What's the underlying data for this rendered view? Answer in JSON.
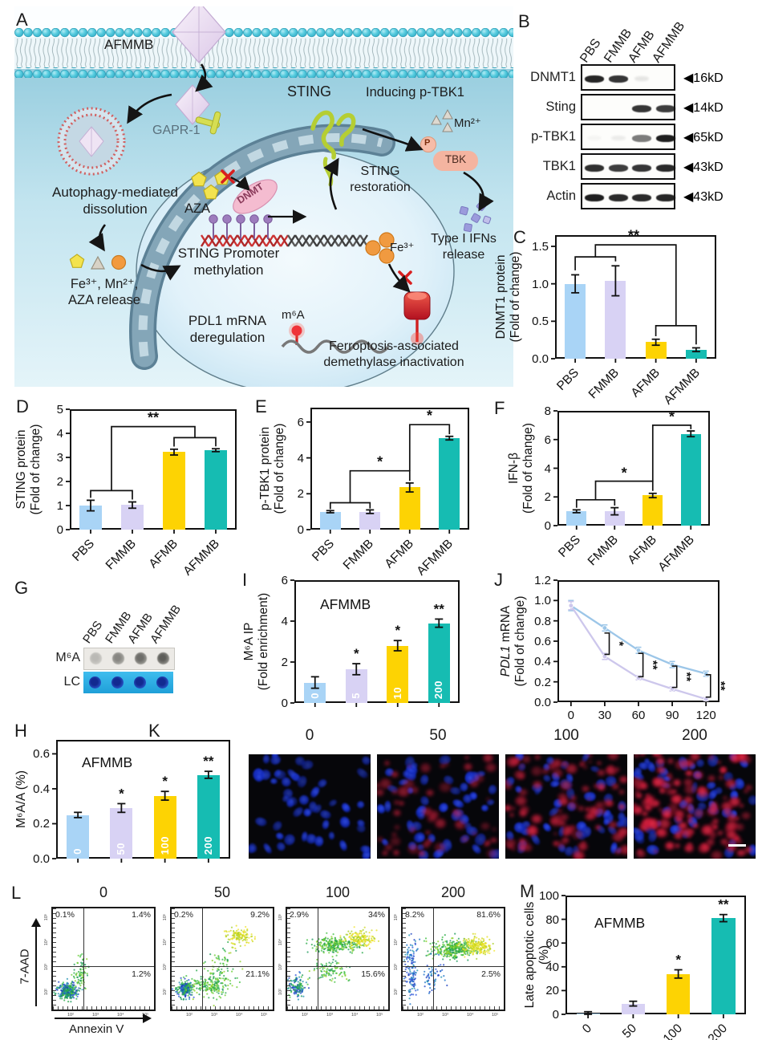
{
  "panel_letters": {
    "A": "A",
    "B": "B",
    "C": "C",
    "D": "D",
    "E": "E",
    "F": "F",
    "G": "G",
    "H": "H",
    "I": "I",
    "J": "J",
    "K": "K",
    "L": "L",
    "M": "M"
  },
  "colors": {
    "bar_blue": "#a9d4f6",
    "bar_lavender": "#d8d2f4",
    "bar_yellow": "#fdd303",
    "bar_teal": "#16bcb2",
    "line_blue": "#9cc6e8",
    "line_lavender": "#cdc7ec",
    "lc_blue": "#2fb3e8"
  },
  "panelA": {
    "labels": {
      "afmmb": "AFMMB",
      "gapr1": "GAPR-1",
      "sting": "STING",
      "inducing": "Inducing p-TBK1",
      "mn": "Mn²⁺",
      "p": "P",
      "tbk": "TBK",
      "restoration1": "STING",
      "restoration2": "restoration",
      "autophagy1": "Autophagy-mediated",
      "autophagy2": "dissolution",
      "aza": "AZA",
      "dnmt": "DNMT",
      "promoter1": "STING Promoter",
      "promoter2": "methylation",
      "ifns1": "Type I IFNs",
      "ifns2": "release",
      "ferel1": "Fe³⁺, Mn²⁺,",
      "ferel2": "AZA release",
      "fe3": "Fe³⁺",
      "pdl11": "PDL1 mRNA",
      "pdl12": "deregulation",
      "m6a": "m⁶A",
      "ferro1": "Ferroptosis-associated",
      "ferro2": "demethylase inactivation"
    }
  },
  "panelB": {
    "lanes": [
      "PBS",
      "FMMB",
      "AFMB",
      "AFMMB"
    ],
    "rows": [
      {
        "label": "DNMT1",
        "marker": "◀16kD",
        "bands": [
          0.92,
          0.85,
          0.1,
          0.0
        ]
      },
      {
        "label": "Sting",
        "marker": "◀14kD",
        "bands": [
          0.0,
          0.0,
          0.85,
          0.82
        ]
      },
      {
        "label": "p-TBK1",
        "marker": "◀65kD",
        "bands": [
          0.03,
          0.07,
          0.55,
          0.95
        ]
      },
      {
        "label": "TBK1",
        "marker": "◀43kD",
        "bands": [
          0.88,
          0.82,
          0.85,
          0.9
        ]
      },
      {
        "label": "Actin",
        "marker": "◀43kD",
        "bands": [
          0.95,
          0.9,
          0.9,
          0.92
        ]
      }
    ]
  },
  "panelG": {
    "lanes": [
      "PBS",
      "FMMB",
      "AFMB",
      "AFMMB"
    ],
    "m6a_label": "M⁶A",
    "lc_label": "LC",
    "m6a_dots": [
      0.3,
      0.62,
      0.78,
      0.88
    ]
  },
  "panelK": {
    "titles": [
      "0",
      "50",
      "100",
      "200"
    ],
    "nuclei": 52,
    "red_counts": [
      0,
      55,
      95,
      135
    ],
    "red_opacity": [
      0,
      0.5,
      0.62,
      0.72
    ]
  },
  "panelL": {
    "ylabel": "7-AAD",
    "xlabel": "Annexin V",
    "axis_ticks": [
      "10²",
      "10³",
      "10⁴",
      "10⁵"
    ],
    "plots": [
      {
        "title": "0",
        "ul": "0.1%",
        "ur": "1.4%",
        "lr": "1.2%",
        "clusters": [
          [
            15,
            82,
            6,
            5,
            320,
            "bluegreen"
          ],
          [
            26,
            70,
            6,
            9,
            60,
            "green"
          ],
          [
            30,
            55,
            4,
            8,
            25,
            "green"
          ]
        ]
      },
      {
        "title": "50",
        "ul": "0.2%",
        "ur": "9.2%",
        "lr": "21.1%",
        "clusters": [
          [
            13,
            80,
            5,
            5,
            220,
            "bluegreen"
          ],
          [
            38,
            76,
            13,
            7,
            200,
            "green"
          ],
          [
            66,
            28,
            8,
            5,
            130,
            "yellow"
          ],
          [
            50,
            55,
            12,
            10,
            60,
            "green"
          ]
        ]
      },
      {
        "title": "100",
        "ul": "2.9%",
        "ur": "34%",
        "lr": "15.6%",
        "clusters": [
          [
            10,
            78,
            5,
            6,
            140,
            "bluegreen"
          ],
          [
            48,
            36,
            15,
            5,
            260,
            "green"
          ],
          [
            72,
            30,
            9,
            5,
            160,
            "yellow"
          ],
          [
            42,
            62,
            13,
            7,
            100,
            "green"
          ]
        ]
      },
      {
        "title": "200",
        "ul": "8.2%",
        "ur": "81.6%",
        "lr": "2.5%",
        "clusters": [
          [
            8,
            55,
            4,
            20,
            130,
            "blue"
          ],
          [
            50,
            40,
            13,
            6,
            320,
            "green"
          ],
          [
            73,
            37,
            9,
            5,
            220,
            "yellow"
          ],
          [
            30,
            65,
            8,
            10,
            60,
            "blue"
          ]
        ]
      }
    ]
  },
  "chart_data": [
    {
      "id": "C",
      "type": "bar",
      "ylabel": [
        "DNMT1 protein",
        "(Fold of change)"
      ],
      "yl_left": 8,
      "categories": [
        "PBS",
        "FMMB",
        "AFMB",
        "AFMMB"
      ],
      "values": [
        1.0,
        1.04,
        0.22,
        0.12
      ],
      "errors": [
        0.12,
        0.2,
        0.04,
        0.025
      ],
      "ylim": [
        0,
        1.65
      ],
      "yticks": [
        {
          "v": 0,
          "t": "0.0"
        },
        {
          "v": 0.5,
          "t": "0.5"
        },
        {
          "v": 1,
          "t": "1.0"
        },
        {
          "v": 1.5,
          "t": "1.5"
        }
      ],
      "rot_xlabels": true,
      "sig_lines": [
        [
          [
            0,
            1.18
          ],
          [
            0,
            1.36
          ],
          [
            1,
            1.36
          ],
          [
            1,
            1.3
          ]
        ],
        [
          [
            2,
            0.3
          ],
          [
            2,
            0.44
          ],
          [
            3,
            0.44
          ],
          [
            3,
            0.19
          ]
        ],
        [
          [
            0.5,
            1.36
          ],
          [
            0.5,
            1.52
          ],
          [
            2.5,
            1.52
          ],
          [
            2.5,
            0.44
          ]
        ]
      ],
      "sig_labels": [
        {
          "x": 1.45,
          "y": 1.58,
          "t": "**"
        }
      ]
    },
    {
      "id": "D",
      "type": "bar",
      "ylabel": [
        "STING protein",
        "(Fold of change)"
      ],
      "yl_left": 6,
      "categories": [
        "PBS",
        "FMMB",
        "AFMB",
        "AFMMB"
      ],
      "values": [
        1.0,
        1.02,
        3.22,
        3.3
      ],
      "errors": [
        0.22,
        0.13,
        0.12,
        0.06
      ],
      "ylim": [
        0,
        5
      ],
      "yticks": [
        {
          "v": 0,
          "t": "0"
        },
        {
          "v": 1,
          "t": "1"
        },
        {
          "v": 2,
          "t": "2"
        },
        {
          "v": 3,
          "t": "3"
        },
        {
          "v": 4,
          "t": "4"
        },
        {
          "v": 5,
          "t": "5"
        }
      ],
      "rot_xlabels": true,
      "sig_lines": [
        [
          [
            0,
            1.32
          ],
          [
            0,
            1.62
          ],
          [
            1,
            1.62
          ],
          [
            1,
            1.25
          ]
        ],
        [
          [
            2,
            3.45
          ],
          [
            2,
            3.82
          ],
          [
            3,
            3.82
          ],
          [
            3,
            3.46
          ]
        ],
        [
          [
            0.5,
            1.62
          ],
          [
            0.5,
            4.28
          ],
          [
            2.5,
            4.28
          ],
          [
            2.5,
            3.82
          ]
        ]
      ],
      "sig_labels": [
        {
          "x": 1.5,
          "y": 4.45,
          "t": "**"
        }
      ]
    },
    {
      "id": "E",
      "type": "bar",
      "ylabel": [
        "p-TBK1 protein",
        "(Fold of change)"
      ],
      "yl_left": 6,
      "categories": [
        "PBS",
        "FMMB",
        "AFMB",
        "AFMMB"
      ],
      "values": [
        1.0,
        1.0,
        2.35,
        5.1
      ],
      "errors": [
        0.06,
        0.1,
        0.25,
        0.1
      ],
      "ylim": [
        0,
        6.8
      ],
      "yticks": [
        {
          "v": 0,
          "t": "0"
        },
        {
          "v": 2,
          "t": "2"
        },
        {
          "v": 4,
          "t": "4"
        },
        {
          "v": 6,
          "t": "6"
        }
      ],
      "rot_xlabels": true,
      "sig_lines": [
        [
          [
            0,
            1.14
          ],
          [
            0,
            1.5
          ],
          [
            1,
            1.5
          ],
          [
            1,
            1.18
          ]
        ],
        [
          [
            0.5,
            1.5
          ],
          [
            0.5,
            3.28
          ],
          [
            2,
            3.28
          ],
          [
            2,
            2.72
          ]
        ],
        [
          [
            2,
            3.28
          ],
          [
            2,
            5.85
          ],
          [
            3,
            5.85
          ],
          [
            3,
            5.32
          ]
        ]
      ],
      "sig_labels": [
        {
          "x": 1.25,
          "y": 3.52,
          "t": "*"
        },
        {
          "x": 2.5,
          "y": 6.08,
          "t": "*"
        }
      ]
    },
    {
      "id": "F",
      "type": "bar",
      "ylabel": [
        "IFN-β",
        "(Fold of change)"
      ],
      "yl_left": 8,
      "categories": [
        "PBS",
        "FMMB",
        "AFMB",
        "AFMMB"
      ],
      "values": [
        1.0,
        1.0,
        2.1,
        6.4
      ],
      "errors": [
        0.1,
        0.25,
        0.15,
        0.2
      ],
      "ylim": [
        0,
        8
      ],
      "yticks": [
        {
          "v": 0,
          "t": "0"
        },
        {
          "v": 2,
          "t": "2"
        },
        {
          "v": 4,
          "t": "4"
        },
        {
          "v": 6,
          "t": "6"
        },
        {
          "v": 8,
          "t": "8"
        }
      ],
      "rot_xlabels": true,
      "sig_lines": [
        [
          [
            0,
            1.25
          ],
          [
            0,
            1.8
          ],
          [
            1,
            1.8
          ],
          [
            1,
            1.4
          ]
        ],
        [
          [
            0.5,
            1.8
          ],
          [
            0.5,
            3.1
          ],
          [
            2,
            3.1
          ],
          [
            2,
            2.42
          ]
        ],
        [
          [
            2,
            3.1
          ],
          [
            2,
            7.0
          ],
          [
            3,
            7.0
          ],
          [
            3,
            6.72
          ]
        ]
      ],
      "sig_labels": [
        {
          "x": 1.25,
          "y": 3.34,
          "t": "*"
        },
        {
          "x": 2.5,
          "y": 7.24,
          "t": "*"
        }
      ]
    },
    {
      "id": "H",
      "type": "bar",
      "title": "AFMMB",
      "title_xy": [
        32,
        26
      ],
      "ylabel": [
        "M⁶A/A (%)"
      ],
      "yl_left": 8,
      "categories": [
        "0",
        "50",
        "100",
        "200"
      ],
      "values": [
        0.25,
        0.29,
        0.36,
        0.48
      ],
      "errors": [
        0.015,
        0.025,
        0.025,
        0.02
      ],
      "ylim": [
        0,
        0.68
      ],
      "yticks": [
        {
          "v": 0,
          "t": "0.0"
        },
        {
          "v": 0.2,
          "t": "0.2"
        },
        {
          "v": 0.4,
          "t": "0.4"
        },
        {
          "v": 0.6,
          "t": "0.6"
        }
      ],
      "inside_labels": [
        "0",
        "50",
        "100",
        "200"
      ],
      "stars": [
        "",
        "*",
        "*",
        "**"
      ]
    },
    {
      "id": "I",
      "type": "bar",
      "title": "AFMMB",
      "title_xy": [
        32,
        28
      ],
      "ylabel": [
        "M⁶A IP",
        "(Fold enrichment)"
      ],
      "yl_left": 8,
      "categories": [
        "0",
        "5",
        "10",
        "200"
      ],
      "values": [
        1.0,
        1.65,
        2.8,
        3.9
      ],
      "errors": [
        0.28,
        0.27,
        0.25,
        0.2
      ],
      "ylim": [
        0,
        6
      ],
      "yticks": [
        {
          "v": 0,
          "t": "0"
        },
        {
          "v": 2,
          "t": "2"
        },
        {
          "v": 4,
          "t": "4"
        },
        {
          "v": 6,
          "t": "6"
        }
      ],
      "inside_labels": [
        "0",
        "5",
        "10",
        "200"
      ],
      "stars": [
        "",
        "*",
        "*",
        "**"
      ]
    },
    {
      "id": "J",
      "type": "line",
      "ylabel": [
        "PDL1 mRNA",
        "(Fold of change)"
      ],
      "ylabel_italic": "PDL1",
      "yl_left": 10,
      "xlim": [
        -12,
        132
      ],
      "ylim": [
        0,
        1.2
      ],
      "yticks": [
        {
          "v": 0,
          "t": "0.0"
        },
        {
          "v": 0.2,
          "t": "0.2"
        },
        {
          "v": 0.4,
          "t": "0.4"
        },
        {
          "v": 0.6,
          "t": "0.6"
        },
        {
          "v": 0.8,
          "t": "0.8"
        },
        {
          "v": 1.0,
          "t": "1.0"
        },
        {
          "v": 1.2,
          "t": "1.2"
        }
      ],
      "xticks": [
        {
          "v": 0,
          "t": "0"
        },
        {
          "v": 30,
          "t": "30"
        },
        {
          "v": 60,
          "t": "60"
        },
        {
          "v": 90,
          "t": "90"
        },
        {
          "v": 120,
          "t": "120"
        }
      ],
      "x": [
        0,
        30,
        60,
        90,
        120
      ],
      "series": [
        {
          "color": "#9cc6e8",
          "values": [
            0.95,
            0.73,
            0.51,
            0.37,
            0.28
          ],
          "errors": [
            0.05,
            0.03,
            0.03,
            0.03,
            0.025
          ]
        },
        {
          "color": "#cdc7ec",
          "values": [
            0.95,
            0.45,
            0.24,
            0.13,
            0.03
          ],
          "errors": [
            0.04,
            0.03,
            0.02,
            0.02,
            0.015
          ]
        }
      ],
      "brackets": [
        {
          "x": 34,
          "y1": 0.68,
          "y2": 0.47,
          "t": "*"
        },
        {
          "x": 64,
          "y1": 0.48,
          "y2": 0.25,
          "t": "**"
        },
        {
          "x": 94,
          "y1": 0.355,
          "y2": 0.145,
          "t": "**"
        },
        {
          "x": 124,
          "y1": 0.27,
          "y2": 0.05,
          "t": "**"
        }
      ]
    },
    {
      "id": "M",
      "type": "bar",
      "title": "AFMMB",
      "title_xy": [
        36,
        32
      ],
      "ylabel": [
        "Late apoptotic cells (%)"
      ],
      "yl_left": 10,
      "categories": [
        "0",
        "50",
        "100",
        "200"
      ],
      "values": [
        1,
        9,
        34,
        81
      ],
      "errors": [
        1.2,
        2,
        3.5,
        3
      ],
      "ylim": [
        0,
        100
      ],
      "yticks": [
        {
          "v": 0,
          "t": "0"
        },
        {
          "v": 20,
          "t": "20"
        },
        {
          "v": 40,
          "t": "40"
        },
        {
          "v": 60,
          "t": "60"
        },
        {
          "v": 80,
          "t": "80"
        },
        {
          "v": 100,
          "t": "100"
        }
      ],
      "rot_xlabels": true,
      "stars": [
        "",
        "",
        "*",
        "**"
      ]
    }
  ]
}
